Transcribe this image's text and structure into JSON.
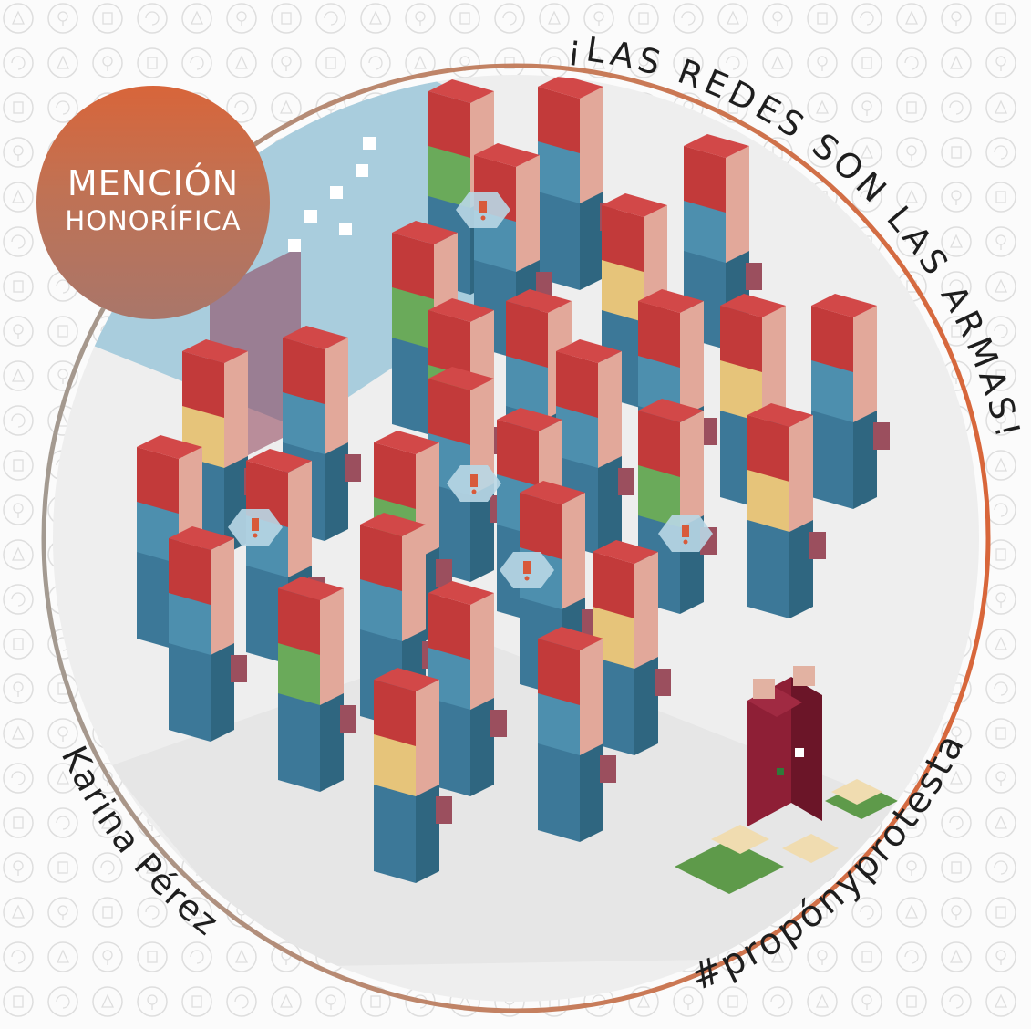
{
  "badge": {
    "line1": "MENCIÓN",
    "line2": "HONORÍFICA"
  },
  "top_slogan": "¡LAS REDES SON LAS ARMAS!",
  "author": "Karina Pérez",
  "hashtag": "#propónyprotesta",
  "icons": [
    "bicycle-icon",
    "house-icon",
    "tree-icon",
    "fist-icon",
    "recycle-icon",
    "hand-icon"
  ],
  "colors": {
    "background": "#fbfbfb",
    "pattern": "#dedede",
    "ring_top": "#d8663a",
    "ring_left": "#a39a91",
    "fabric": "#eeeeee",
    "hair_red": "#c23a3a",
    "skin": "#e2a89a",
    "body_blue": "#4d8fae",
    "pants_blue": "#3c7898",
    "wall_blue": "#a9cddd",
    "hand_mauve": "#9b4f5e",
    "shirt_green": "#6aaa5a",
    "shirt_yellow": "#e6c47a",
    "money_green": "#5e9a4a",
    "money_sack": "#f0dcb0",
    "suit_maroon": "#8e1f36"
  }
}
